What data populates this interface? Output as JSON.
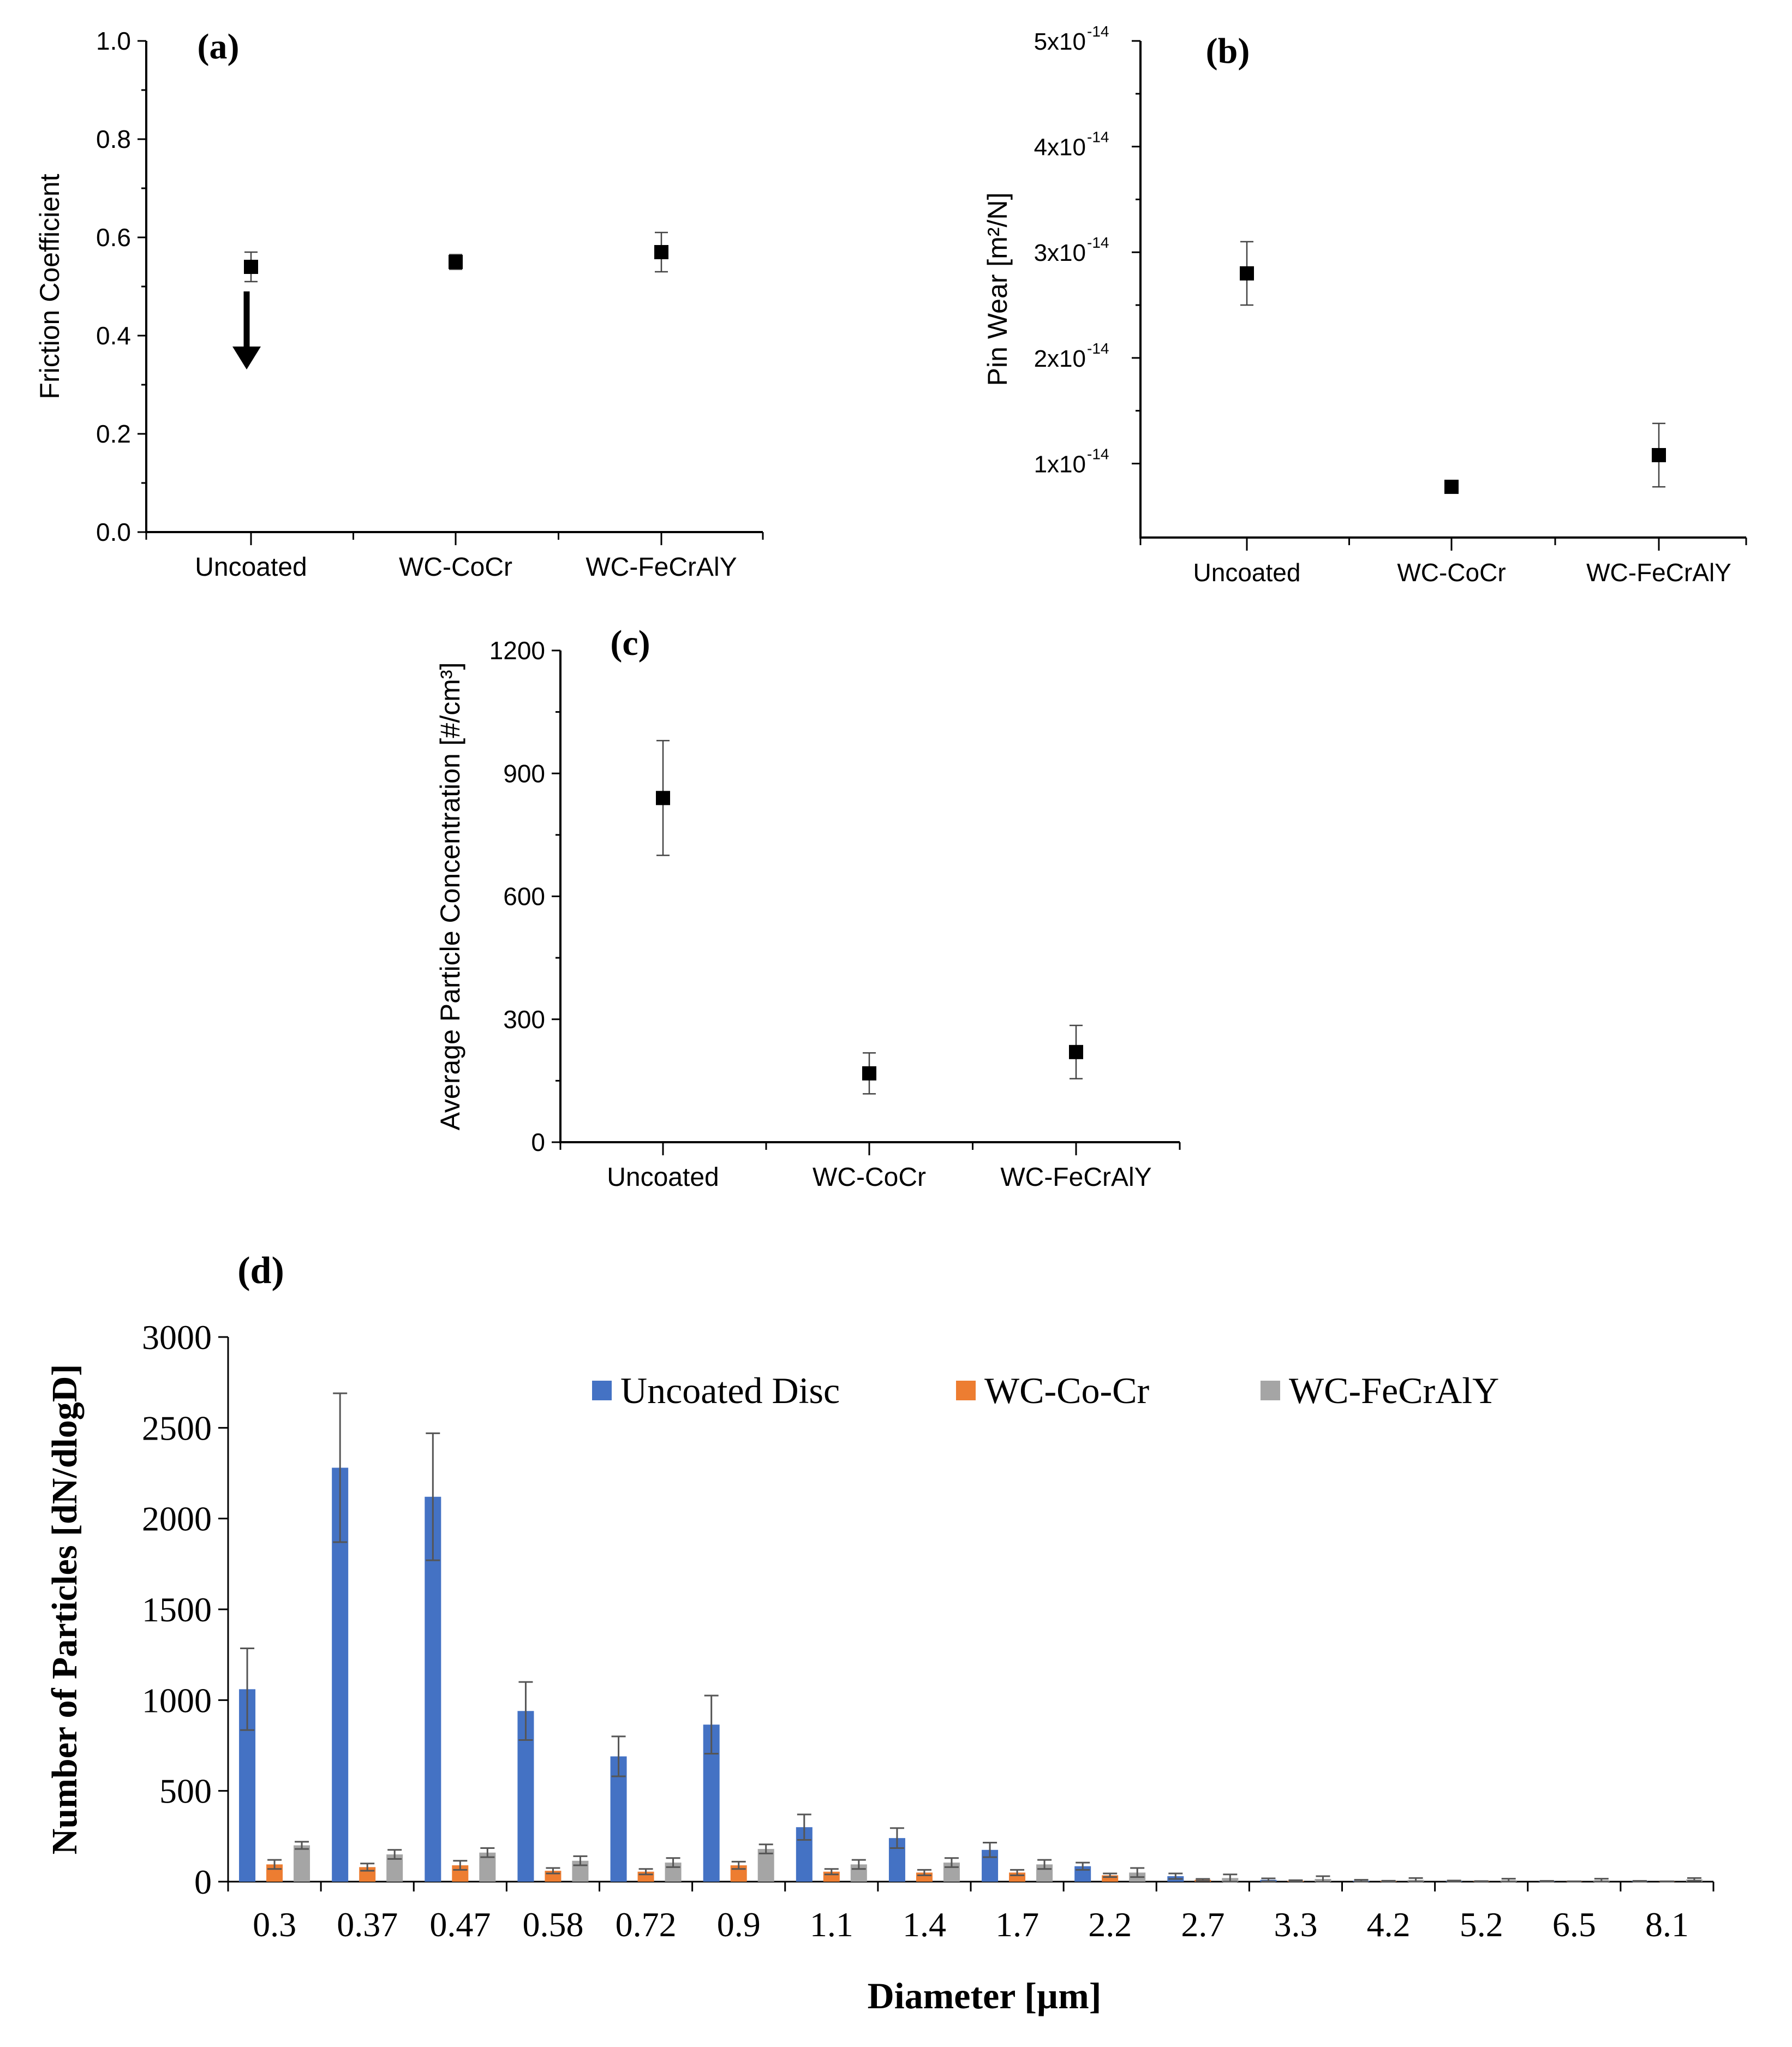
{
  "figure": {
    "panels": [
      "a",
      "b",
      "c",
      "d"
    ]
  },
  "chart_data": [
    {
      "id": "a",
      "type": "scatter",
      "panel_label": "(a)",
      "title": "",
      "xlabel": "",
      "ylabel": "Friction Coefficient",
      "categories": [
        "Uncoated",
        "WC-CoCr",
        "WC-FeCrAlY"
      ],
      "values": [
        0.54,
        0.55,
        0.57
      ],
      "errors": [
        0.03,
        0.015,
        0.04
      ],
      "ylim": [
        0.0,
        1.0
      ],
      "yticks": [
        0.0,
        0.2,
        0.4,
        0.6,
        0.8,
        1.0
      ],
      "ytick_labels": [
        "0.0",
        "0.2",
        "0.4",
        "0.6",
        "0.8",
        "1.0"
      ],
      "annotation": {
        "type": "arrow-down",
        "category": "Uncoated",
        "from": 0.49,
        "to": 0.34
      },
      "marker_color": "#000000"
    },
    {
      "id": "b",
      "type": "scatter",
      "panel_label": "(b)",
      "title": "",
      "xlabel": "",
      "ylabel": "Pin Wear [m²/N]",
      "categories": [
        "Uncoated",
        "WC-CoCr",
        "WC-FeCrAlY"
      ],
      "values": [
        2.8e-14,
        7.8e-15,
        1.08e-14
      ],
      "errors": [
        3e-15,
        0.0,
        3e-15
      ],
      "ylim": [
        3e-15,
        5e-14
      ],
      "yticks": [
        1e-14,
        2e-14,
        3e-14,
        4e-14,
        5e-14
      ],
      "ytick_labels": [
        "1x10",
        "2x10",
        "3x10",
        "4x10",
        "5x10"
      ],
      "ytick_exponent": "-14",
      "marker_color": "#000000"
    },
    {
      "id": "c",
      "type": "scatter",
      "panel_label": "(c)",
      "title": "",
      "xlabel": "",
      "ylabel": "Average Particle Concentration [#/cm³]",
      "categories": [
        "Uncoated",
        "WC-CoCr",
        "WC-FeCrAlY"
      ],
      "values": [
        840,
        168,
        220
      ],
      "errors": [
        140,
        50,
        65
      ],
      "ylim": [
        0,
        1200
      ],
      "yticks": [
        0,
        300,
        600,
        900,
        1200
      ],
      "ytick_labels": [
        "0",
        "300",
        "600",
        "900",
        "1200"
      ],
      "marker_color": "#000000"
    },
    {
      "id": "d",
      "type": "bar",
      "panel_label": "(d)",
      "title": "",
      "xlabel": "Diameter [µm]",
      "ylabel": "Number of Particles [dN/dlogD]",
      "categories": [
        "0.3",
        "0.37",
        "0.47",
        "0.58",
        "0.72",
        "0.9",
        "1.1",
        "1.4",
        "1.7",
        "2.2",
        "2.7",
        "3.3",
        "4.2",
        "5.2",
        "6.5",
        "8.1"
      ],
      "series": [
        {
          "name": "Uncoated Disc",
          "color": "#4472C4",
          "values": [
            1060,
            2280,
            2120,
            940,
            690,
            865,
            300,
            240,
            175,
            85,
            30,
            10,
            5,
            3,
            2,
            2
          ],
          "errors": [
            225,
            410,
            350,
            160,
            110,
            160,
            70,
            55,
            40,
            20,
            15,
            8,
            5,
            3,
            2,
            2
          ]
        },
        {
          "name": "WC-Co-Cr",
          "color": "#ED7D31",
          "values": [
            95,
            80,
            90,
            60,
            55,
            90,
            55,
            50,
            50,
            35,
            10,
            5,
            3,
            2,
            1,
            1
          ],
          "errors": [
            25,
            20,
            25,
            15,
            15,
            20,
            15,
            15,
            15,
            10,
            5,
            3,
            2,
            1,
            1,
            1
          ]
        },
        {
          "name": "WC-FeCrAlY",
          "color": "#A5A5A5",
          "values": [
            200,
            150,
            160,
            115,
            105,
            180,
            95,
            105,
            95,
            50,
            20,
            15,
            10,
            8,
            8,
            12
          ],
          "errors": [
            20,
            25,
            25,
            25,
            25,
            25,
            25,
            25,
            25,
            25,
            20,
            15,
            10,
            8,
            8,
            8
          ]
        }
      ],
      "ylim": [
        0,
        3000
      ],
      "yticks": [
        0,
        500,
        1000,
        1500,
        2000,
        2500,
        3000
      ],
      "ytick_labels": [
        "0",
        "500",
        "1000",
        "1500",
        "2000",
        "2500",
        "3000"
      ],
      "legend_position": "top"
    }
  ]
}
